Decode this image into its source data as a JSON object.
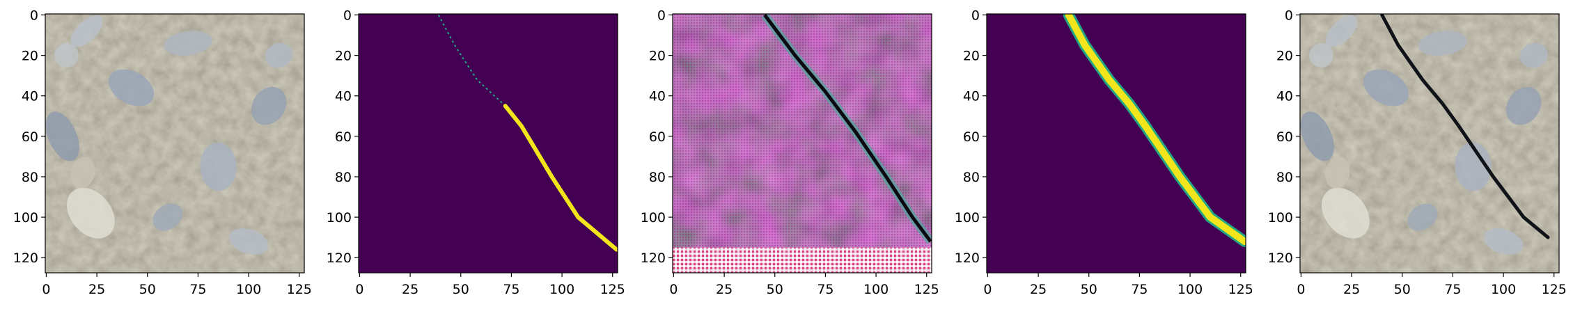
{
  "figure": {
    "panel_count": 5,
    "panels": [
      {
        "name": "input-image",
        "kind": "photo-texture"
      },
      {
        "name": "ground-truth-mask",
        "kind": "mask"
      },
      {
        "name": "feature-visualization",
        "kind": "feature"
      },
      {
        "name": "predicted-mask",
        "kind": "mask-soft"
      },
      {
        "name": "overlay",
        "kind": "overlay"
      }
    ],
    "axes": {
      "x_ticks": [
        "0",
        "25",
        "50",
        "75",
        "100",
        "125"
      ],
      "y_ticks": [
        "0",
        "20",
        "40",
        "60",
        "80",
        "100",
        "120"
      ],
      "x_range": [
        -0.5,
        127.5
      ],
      "y_range": [
        -0.5,
        127.5
      ]
    },
    "colors": {
      "mask_background": "#440154",
      "mask_crack": "#f2e51c",
      "mask_edge": "#22a884",
      "feature_magenta": "#b54aa8",
      "rock_base": "#8a8070"
    }
  },
  "chart_data": [
    {
      "type": "heatmap",
      "panel": "input-image",
      "xlim": [
        -0.5,
        127.5
      ],
      "ylim": [
        127.5,
        -0.5
      ]
    },
    {
      "type": "heatmap",
      "panel": "ground-truth-mask",
      "xlim": [
        -0.5,
        127.5
      ],
      "ylim": [
        127.5,
        -0.5
      ],
      "crack_path": [
        [
          39,
          0
        ],
        [
          47,
          15
        ],
        [
          58,
          32
        ],
        [
          72,
          45
        ],
        [
          80,
          55
        ],
        [
          95,
          80
        ],
        [
          108,
          100
        ],
        [
          127,
          116
        ]
      ]
    },
    {
      "type": "heatmap",
      "panel": "feature-visualization",
      "xlim": [
        -0.5,
        127.5
      ],
      "ylim": [
        127.5,
        -0.5
      ]
    },
    {
      "type": "heatmap",
      "panel": "predicted-mask",
      "xlim": [
        -0.5,
        127.5
      ],
      "ylim": [
        127.5,
        -0.5
      ],
      "crack_path": [
        [
          40,
          0
        ],
        [
          48,
          15
        ],
        [
          60,
          32
        ],
        [
          70,
          44
        ],
        [
          78,
          55
        ],
        [
          95,
          80
        ],
        [
          110,
          100
        ],
        [
          127,
          112
        ]
      ]
    },
    {
      "type": "heatmap",
      "panel": "overlay",
      "xlim": [
        -0.5,
        127.5
      ],
      "ylim": [
        127.5,
        -0.5
      ],
      "crack_path": [
        [
          40,
          0
        ],
        [
          48,
          15
        ],
        [
          60,
          32
        ],
        [
          70,
          44
        ],
        [
          78,
          55
        ],
        [
          95,
          80
        ],
        [
          110,
          100
        ],
        [
          122,
          110
        ]
      ]
    }
  ]
}
